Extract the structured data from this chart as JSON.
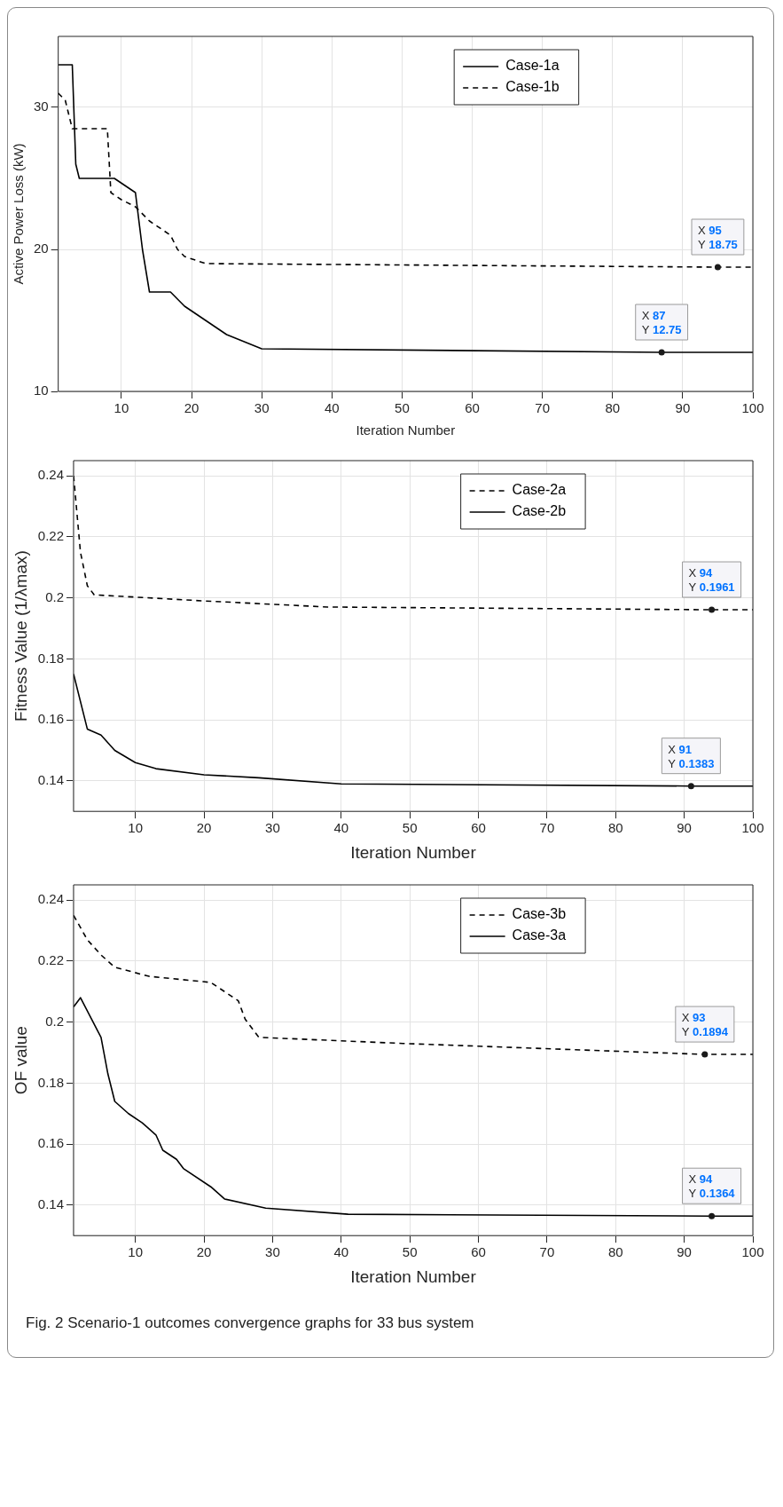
{
  "chart_data": [
    {
      "type": "line",
      "xlabel": "Iteration Number",
      "ylabel": "Active Power Loss (kW)",
      "xlim": [
        1,
        100
      ],
      "xticks": [
        10,
        20,
        30,
        40,
        50,
        60,
        70,
        80,
        90,
        100
      ],
      "ylim": [
        10,
        35
      ],
      "yticks": [
        10,
        20,
        30
      ],
      "grid": true,
      "legend": "top",
      "marker": "none",
      "series": [
        {
          "name": "Case-1a",
          "color": "#000000",
          "line_style": "solid",
          "x": [
            1,
            3,
            3.5,
            4,
            9,
            12,
            13,
            14,
            17,
            19,
            22,
            25,
            30,
            87,
            100
          ],
          "values": [
            33,
            33,
            26,
            25,
            25,
            24,
            20,
            17,
            17,
            16,
            15,
            14,
            13,
            12.75,
            12.75
          ]
        },
        {
          "name": "Case-1b",
          "color": "#000000",
          "line_style": "dashed",
          "x": [
            1,
            2,
            3,
            8,
            8.5,
            10,
            12,
            14,
            17,
            18,
            19,
            22,
            95,
            100
          ],
          "values": [
            31,
            30.5,
            28.5,
            28.5,
            24,
            23.5,
            23,
            22,
            21,
            20,
            19.5,
            19,
            18.75,
            18.75
          ]
        }
      ],
      "annotations": [
        {
          "text": "X 95\nY 18.75",
          "x": 95,
          "y": 18.75
        },
        {
          "text": "X 87\nY 12.75",
          "x": 87,
          "y": 12.75
        }
      ]
    },
    {
      "type": "line",
      "xlabel": "Iteration Number",
      "ylabel": "Fitness Value (1/λmax)",
      "xlim": [
        1,
        100
      ],
      "xticks": [
        10,
        20,
        30,
        40,
        50,
        60,
        70,
        80,
        90,
        100
      ],
      "ylim": [
        0.13,
        0.245
      ],
      "yticks": [
        0.14,
        0.16,
        0.18,
        0.2,
        0.22,
        0.24
      ],
      "grid": true,
      "legend": "top",
      "marker": "none",
      "series": [
        {
          "name": "Case-2a",
          "color": "#000000",
          "line_style": "dashed",
          "x": [
            1,
            2,
            3,
            4,
            20,
            38,
            94,
            100
          ],
          "values": [
            0.24,
            0.215,
            0.204,
            0.201,
            0.199,
            0.197,
            0.1961,
            0.1961
          ]
        },
        {
          "name": "Case-2b",
          "color": "#000000",
          "line_style": "solid",
          "x": [
            1,
            3,
            5,
            7,
            10,
            13,
            20,
            28,
            40,
            91,
            100
          ],
          "values": [
            0.175,
            0.157,
            0.155,
            0.15,
            0.146,
            0.144,
            0.142,
            0.141,
            0.139,
            0.1383,
            0.1383
          ]
        }
      ],
      "annotations": [
        {
          "text": "X 94\nY 0.1961",
          "x": 94,
          "y": 0.1961
        },
        {
          "text": "X 91\nY 0.1383",
          "x": 91,
          "y": 0.1383
        }
      ]
    },
    {
      "type": "line",
      "xlabel": "Iteration Number",
      "ylabel": "OF value",
      "xlim": [
        1,
        100
      ],
      "xticks": [
        10,
        20,
        30,
        40,
        50,
        60,
        70,
        80,
        90,
        100
      ],
      "ylim": [
        0.13,
        0.245
      ],
      "yticks": [
        0.14,
        0.16,
        0.18,
        0.2,
        0.22,
        0.24
      ],
      "grid": true,
      "legend": "top",
      "marker": "none",
      "series": [
        {
          "name": "Case-3b",
          "color": "#000000",
          "line_style": "dashed",
          "x": [
            1,
            3,
            5,
            7,
            12,
            21,
            23,
            25,
            26,
            28,
            49,
            93,
            100
          ],
          "values": [
            0.235,
            0.227,
            0.222,
            0.218,
            0.215,
            0.213,
            0.21,
            0.207,
            0.201,
            0.195,
            0.193,
            0.1894,
            0.1894
          ]
        },
        {
          "name": "Case-3a",
          "color": "#000000",
          "line_style": "solid",
          "x": [
            1,
            2,
            5,
            6,
            7,
            9,
            11,
            13,
            14,
            16,
            17,
            21,
            23,
            29,
            41,
            94,
            100
          ],
          "values": [
            0.205,
            0.208,
            0.195,
            0.183,
            0.174,
            0.17,
            0.167,
            0.163,
            0.158,
            0.155,
            0.152,
            0.146,
            0.142,
            0.139,
            0.137,
            0.1364,
            0.1364
          ]
        }
      ],
      "annotations": [
        {
          "text": "X 93\nY 0.1894",
          "x": 93,
          "y": 0.1894
        },
        {
          "text": "X 94\nY 0.1364",
          "x": 94,
          "y": 0.1364
        },
        "Fig. 2  Scenario-1 outcomes convergence graphs for 33 bus system"
      ]
    }
  ]
}
